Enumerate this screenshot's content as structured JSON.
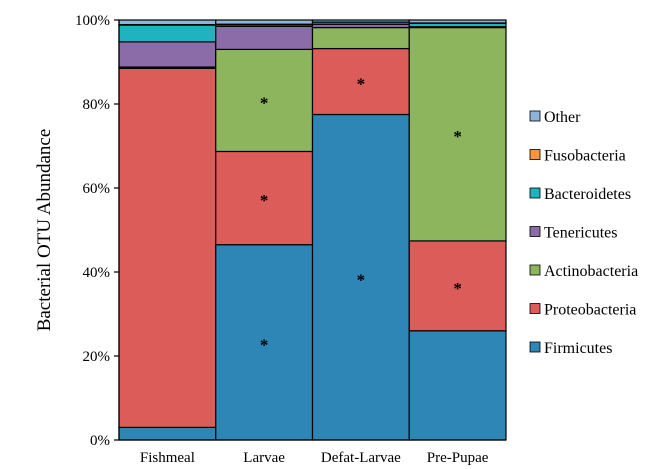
{
  "chart_data": {
    "type": "bar",
    "stacked": true,
    "percent": true,
    "categories": [
      "Fishmeal",
      "Larvae",
      "Defat-Larvae",
      "Pre-Pupae"
    ],
    "series": [
      {
        "name": "Firmicutes",
        "color": "#2E86B7",
        "values": [
          3,
          46.5,
          77.5,
          26
        ]
      },
      {
        "name": "Proteobacteria",
        "color": "#DC5C5A",
        "values": [
          85.5,
          22.2,
          15.7,
          21.4
        ]
      },
      {
        "name": "Actinobacteria",
        "color": "#8DB55D",
        "values": [
          0.3,
          24.3,
          5.0,
          50.8
        ]
      },
      {
        "name": "Tenericutes",
        "color": "#8B6BA8",
        "values": [
          6.0,
          5.5,
          0.8,
          0.2
        ]
      },
      {
        "name": "Bacteroidetes",
        "color": "#1FB3BF",
        "values": [
          4.0,
          0.4,
          0.5,
          0.8
        ]
      },
      {
        "name": "Fusobacteria",
        "color": "#F7953E",
        "values": [
          0.1,
          0.1,
          0.0,
          0.1
        ]
      },
      {
        "name": "Other",
        "color": "#8DB4D9",
        "values": [
          1.1,
          1.0,
          0.5,
          0.7
        ]
      }
    ],
    "annotations": [
      {
        "category": "Larvae",
        "series": "Firmicutes",
        "text": "*"
      },
      {
        "category": "Larvae",
        "series": "Proteobacteria",
        "text": "*"
      },
      {
        "category": "Larvae",
        "series": "Actinobacteria",
        "text": "*"
      },
      {
        "category": "Defat-Larvae",
        "series": "Firmicutes",
        "text": "*"
      },
      {
        "category": "Defat-Larvae",
        "series": "Proteobacteria",
        "text": "*"
      },
      {
        "category": "Pre-Pupae",
        "series": "Proteobacteria",
        "text": "*"
      },
      {
        "category": "Pre-Pupae",
        "series": "Actinobacteria",
        "text": "*"
      }
    ],
    "ylabel": "Bacterial OTU Abundance",
    "xlabel": "",
    "title": "",
    "ylim": [
      0,
      100
    ],
    "yticks": [
      "0%",
      "20%",
      "40%",
      "60%",
      "80%",
      "100%"
    ],
    "legend_order": [
      "Other",
      "Fusobacteria",
      "Bacteroidetes",
      "Tenericutes",
      "Actinobacteria",
      "Proteobacteria",
      "Firmicutes"
    ],
    "legend_position": "right",
    "grid": false
  }
}
